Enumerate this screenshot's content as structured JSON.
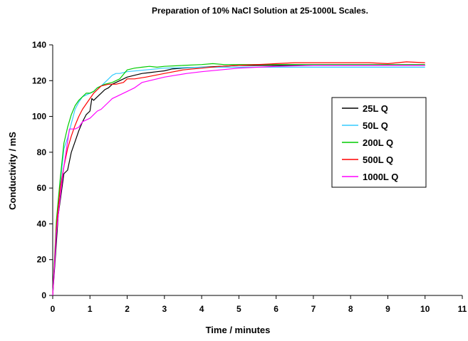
{
  "chart_data": {
    "type": "line",
    "title": "Preparation of 10% NaCl Solution at 25-1000L Scales.",
    "xlabel": "Time / minutes",
    "ylabel": "Conductivity / mS",
    "xlim": [
      0,
      11
    ],
    "ylim": [
      0,
      140
    ],
    "xticks": [
      "0",
      "1",
      "2",
      "3",
      "4",
      "5",
      "6",
      "7",
      "8",
      "9",
      "10",
      "11"
    ],
    "yticks": [
      "0",
      "20",
      "40",
      "60",
      "80",
      "100",
      "120",
      "140"
    ],
    "grid": false,
    "legend_position": "right",
    "series": [
      {
        "name": "25L Q",
        "color": "#000000",
        "x": [
          0,
          0.15,
          0.3,
          0.4,
          0.5,
          0.6,
          0.7,
          0.8,
          0.9,
          1.0,
          1.05,
          1.1,
          1.2,
          1.3,
          1.4,
          1.5,
          1.6,
          1.7,
          1.8,
          1.9,
          2.0,
          2.2,
          2.4,
          2.6,
          2.8,
          3.0,
          3.2,
          3.5,
          4.0,
          4.5,
          5.0,
          6.0,
          7.0,
          8.0,
          9.0,
          10.0
        ],
        "values": [
          0,
          45,
          68,
          70,
          80,
          86,
          92,
          97,
          101,
          103,
          110,
          109,
          111,
          113,
          115,
          116,
          118,
          119,
          120,
          121,
          122,
          123,
          124,
          124.5,
          125,
          125.5,
          126.5,
          127,
          127.5,
          128,
          128.5,
          128.5,
          128.5,
          128.5,
          128.5,
          128.5
        ]
      },
      {
        "name": "50L Q",
        "color": "#33ccff",
        "x": [
          0,
          0.1,
          0.2,
          0.3,
          0.4,
          0.5,
          0.6,
          0.7,
          0.8,
          0.9,
          1.0,
          1.1,
          1.2,
          1.3,
          1.4,
          1.5,
          1.6,
          1.7,
          1.8,
          2.0,
          2.5,
          3.0,
          4.0,
          5.0,
          6.0,
          7.0,
          8.0,
          9.0,
          10.0
        ],
        "values": [
          0,
          40,
          62,
          82,
          88,
          96,
          104,
          108,
          111,
          112,
          113,
          114,
          116,
          117,
          119,
          121,
          123,
          124,
          124,
          125,
          126,
          127,
          127.5,
          127.5,
          127.5,
          127.5,
          127.5,
          127.5,
          127.5
        ]
      },
      {
        "name": "200L Q",
        "color": "#00cc00",
        "x": [
          0,
          0.1,
          0.2,
          0.3,
          0.4,
          0.5,
          0.6,
          0.7,
          0.8,
          0.9,
          1.0,
          1.1,
          1.2,
          1.4,
          1.6,
          1.8,
          2.0,
          2.2,
          2.4,
          2.6,
          2.8,
          3.0,
          3.5,
          4.0,
          4.3,
          4.6,
          5.0,
          6.0,
          7.0,
          8.0,
          9.0,
          10.0
        ],
        "values": [
          0,
          42,
          65,
          85,
          94,
          101,
          106,
          109,
          111,
          113,
          113,
          114,
          116,
          118,
          119,
          121,
          126,
          127,
          127.5,
          128,
          127.5,
          128,
          128.5,
          129,
          129.5,
          129,
          129,
          129,
          129,
          129,
          129,
          129
        ]
      },
      {
        "name": "500L Q",
        "color": "#ff0000",
        "x": [
          0,
          0.1,
          0.2,
          0.3,
          0.4,
          0.5,
          0.6,
          0.7,
          0.8,
          0.9,
          1.0,
          1.1,
          1.2,
          1.3,
          1.5,
          1.7,
          1.9,
          2.0,
          2.2,
          2.5,
          3.0,
          3.5,
          4.0,
          4.5,
          5.0,
          5.5,
          6.0,
          6.5,
          7.0,
          8.0,
          8.5,
          9.0,
          9.5,
          10.0
        ],
        "values": [
          0,
          38,
          60,
          72,
          82,
          89,
          95,
          100,
          104,
          107,
          110,
          113,
          115,
          117,
          118,
          118,
          119,
          121,
          121,
          122,
          124,
          126,
          127,
          128,
          128.5,
          129,
          129.5,
          130,
          130,
          130,
          130,
          129.5,
          130.5,
          130
        ]
      },
      {
        "name": "1000L Q",
        "color": "#ff00ff",
        "x": [
          0,
          0.1,
          0.2,
          0.3,
          0.45,
          0.5,
          0.6,
          0.7,
          0.8,
          0.9,
          1.0,
          1.1,
          1.2,
          1.3,
          1.4,
          1.5,
          1.6,
          1.7,
          1.8,
          1.9,
          2.0,
          2.2,
          2.4,
          2.6,
          2.8,
          3.0,
          3.3,
          3.6,
          4.0,
          4.5,
          5.0,
          6.0,
          7.0,
          8.0,
          9.0,
          10.0
        ],
        "values": [
          0,
          35,
          55,
          72,
          93,
          93,
          93,
          94,
          97,
          98,
          99,
          101,
          103,
          104,
          106,
          108,
          110,
          111,
          112,
          113,
          114,
          116,
          119,
          120,
          121,
          122,
          123,
          124,
          125,
          126,
          127,
          128,
          128.5,
          128.5,
          128.5,
          128.5
        ]
      }
    ]
  }
}
